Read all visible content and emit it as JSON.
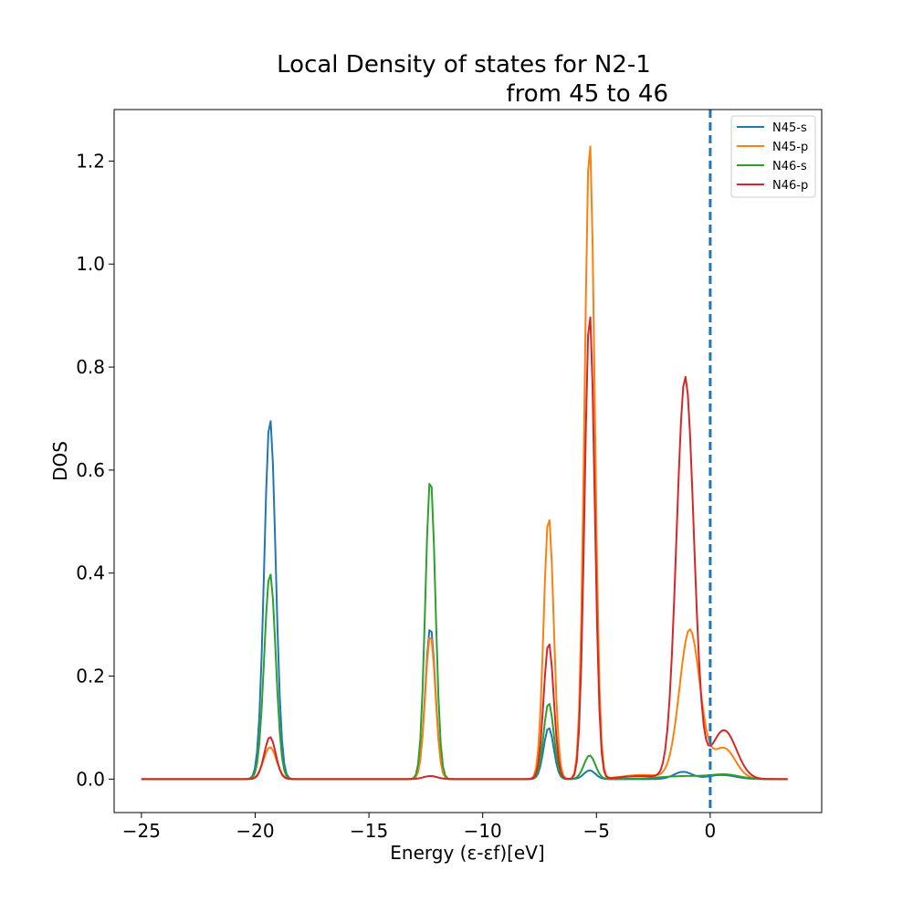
{
  "chart_data": {
    "type": "line",
    "title_line1": "Local Density of states for N2-1",
    "title_line2": "from 45 to 46",
    "xlabel": "Energy (ε-εf)[eV]",
    "ylabel": "DOS",
    "xlim": [
      -26.2,
      4.9
    ],
    "ylim": [
      -0.065,
      1.3
    ],
    "xticks": [
      -25,
      -20,
      -15,
      -10,
      -5,
      0
    ],
    "xtick_labels": [
      "−25",
      "−20",
      "−15",
      "−10",
      "−5",
      "0"
    ],
    "yticks": [
      0.0,
      0.2,
      0.4,
      0.6,
      0.8,
      1.0,
      1.2
    ],
    "ytick_labels": [
      "0.0",
      "0.2",
      "0.4",
      "0.6",
      "0.8",
      "1.0",
      "1.2"
    ],
    "legend_position": "top-right",
    "fermi_line": {
      "x": 0,
      "color": "#1f77b4",
      "style": "dashed"
    },
    "x_range": [
      -25,
      3.4
    ],
    "series": [
      {
        "name": "N45-s",
        "color": "#1f77b4",
        "peaks": [
          {
            "center": -19.35,
            "height": 0.7,
            "width": 0.25
          },
          {
            "center": -12.3,
            "height": 0.295,
            "width": 0.22
          },
          {
            "center": -7.1,
            "height": 0.1,
            "width": 0.22
          },
          {
            "center": -5.3,
            "height": 0.017,
            "width": 0.25
          },
          {
            "center": -1.2,
            "height": 0.014,
            "width": 0.4
          },
          {
            "center": 0.5,
            "height": 0.008,
            "width": 0.6
          }
        ]
      },
      {
        "name": "N45-p",
        "color": "#ff7f0e",
        "peaks": [
          {
            "center": -19.35,
            "height": 0.062,
            "width": 0.28
          },
          {
            "center": -12.3,
            "height": 0.28,
            "width": 0.22
          },
          {
            "center": -7.1,
            "height": 0.51,
            "width": 0.22
          },
          {
            "center": -5.3,
            "height": 1.24,
            "width": 0.22
          },
          {
            "center": -0.9,
            "height": 0.29,
            "width": 0.45
          },
          {
            "center": 0.6,
            "height": 0.06,
            "width": 0.5
          },
          {
            "center": -3.0,
            "height": 0.008,
            "width": 0.9
          }
        ]
      },
      {
        "name": "N46-s",
        "color": "#2ca02c",
        "peaks": [
          {
            "center": -19.35,
            "height": 0.4,
            "width": 0.25
          },
          {
            "center": -12.3,
            "height": 0.585,
            "width": 0.22
          },
          {
            "center": -7.1,
            "height": 0.148,
            "width": 0.22
          },
          {
            "center": -5.3,
            "height": 0.046,
            "width": 0.25
          },
          {
            "center": -1.0,
            "height": 0.006,
            "width": 1.2
          },
          {
            "center": 0.7,
            "height": 0.007,
            "width": 0.6
          }
        ]
      },
      {
        "name": "N46-p",
        "color": "#d62728",
        "peaks": [
          {
            "center": -19.35,
            "height": 0.082,
            "width": 0.25
          },
          {
            "center": -12.3,
            "height": 0.006,
            "width": 0.3
          },
          {
            "center": -7.1,
            "height": 0.265,
            "width": 0.22
          },
          {
            "center": -5.3,
            "height": 0.905,
            "width": 0.22
          },
          {
            "center": -1.1,
            "height": 0.78,
            "width": 0.38
          },
          {
            "center": 0.6,
            "height": 0.095,
            "width": 0.55
          },
          {
            "center": -3.0,
            "height": 0.006,
            "width": 0.9
          }
        ]
      }
    ]
  }
}
